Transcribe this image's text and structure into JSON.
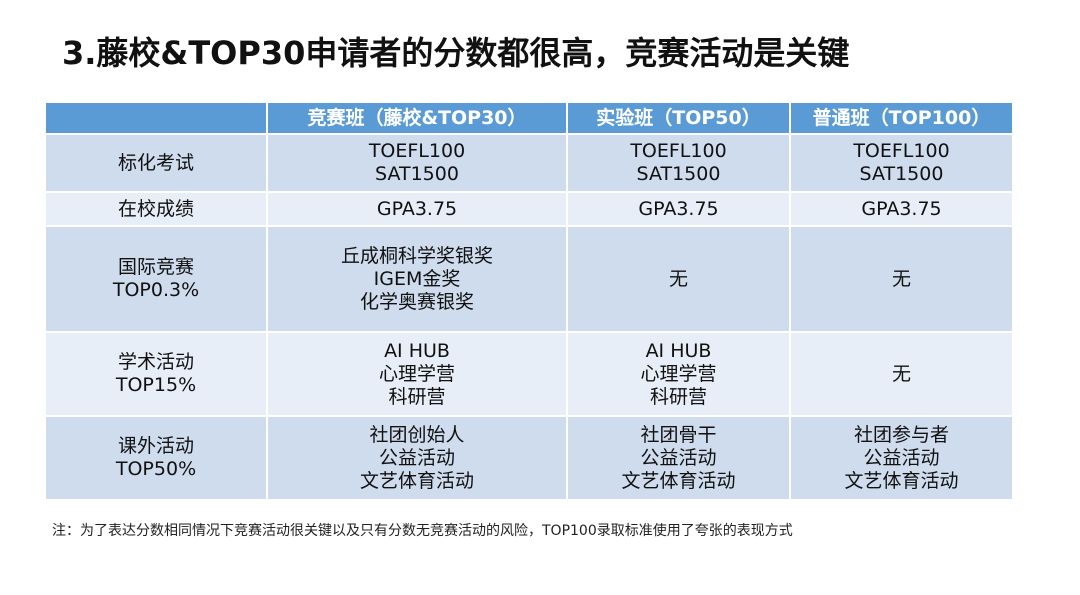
{
  "title": "3.藤校&TOP30申请者的分数都很高，竞赛活动是关键",
  "table": {
    "headers": [
      "",
      "竞赛班（藤校&TOP30）",
      "实验班（TOP50）",
      "普通班（TOP100）"
    ],
    "rows": [
      {
        "label": [
          "标化考试"
        ],
        "cells": [
          [
            "TOEFL100",
            "SAT1500"
          ],
          [
            "TOEFL100",
            "SAT1500"
          ],
          [
            "TOEFL100",
            "SAT1500"
          ]
        ]
      },
      {
        "label": [
          "在校成绩"
        ],
        "cells": [
          [
            "GPA3.75"
          ],
          [
            "GPA3.75"
          ],
          [
            "GPA3.75"
          ]
        ]
      },
      {
        "label": [
          "国际竞赛",
          "TOP0.3%"
        ],
        "cells": [
          [
            "丘成桐科学奖银奖",
            "IGEM金奖",
            "化学奥赛银奖"
          ],
          [
            "无"
          ],
          [
            "无"
          ]
        ]
      },
      {
        "label": [
          "学术活动",
          "TOP15%"
        ],
        "cells": [
          [
            "AI HUB",
            "心理学营",
            "科研营"
          ],
          [
            "AI HUB",
            "心理学营",
            "科研营"
          ],
          [
            "无"
          ]
        ]
      },
      {
        "label": [
          "课外活动",
          "TOP50%"
        ],
        "cells": [
          [
            "社团创始人",
            "公益活动",
            "文艺体育活动"
          ],
          [
            "社团骨干",
            "公益活动",
            "文艺体育活动"
          ],
          [
            "社团参与者",
            "公益活动",
            "文艺体育活动"
          ]
        ]
      }
    ]
  },
  "footnote": "注：为了表达分数相同情况下竞赛活动很关键以及只有分数无竞赛活动的风险，TOP100录取标准使用了夸张的表现方式",
  "colors": {
    "header_bg": "#5b9bd5",
    "row_dark": "#cfdcee",
    "row_light": "#e8eef7"
  }
}
